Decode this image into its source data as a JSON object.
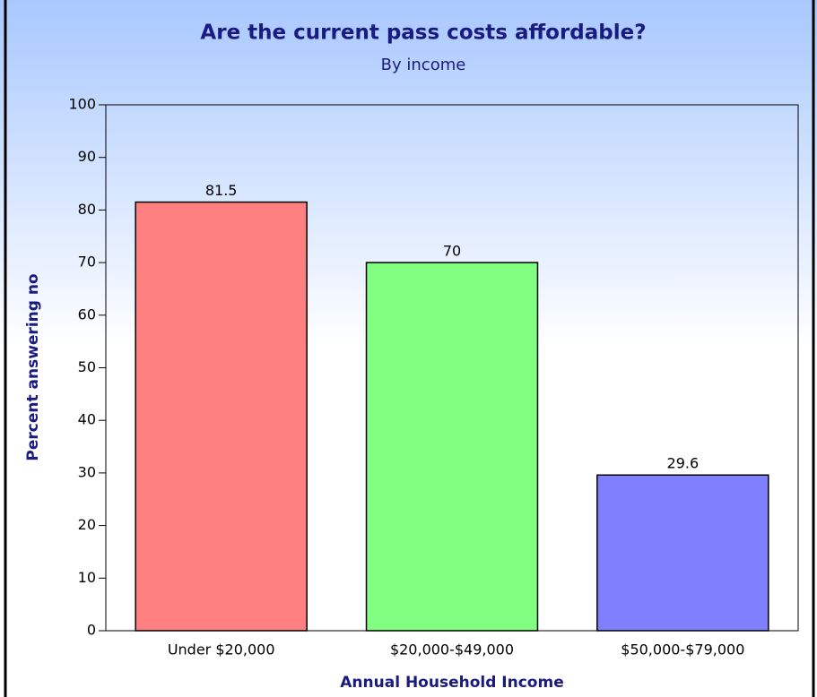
{
  "chart_data": {
    "type": "bar",
    "title": "Are the current pass costs affordable?",
    "subtitle": "By income",
    "x_label": "Annual Household Income",
    "y_label": "Percent answering no",
    "categories": [
      "Under $20,000",
      "$20,000-$49,000",
      "$50,000-$79,000"
    ],
    "values": [
      81.5,
      70,
      29.6
    ],
    "colors": [
      "#ff8080",
      "#80ff80",
      "#8080ff"
    ],
    "ylim": [
      0,
      100
    ],
    "yticks": [
      0,
      10,
      20,
      30,
      40,
      50,
      60,
      70,
      80,
      90,
      100
    ]
  }
}
